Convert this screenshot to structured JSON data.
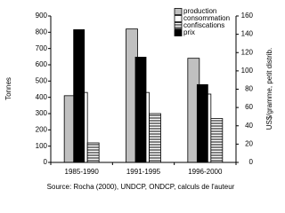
{
  "chart_data": {
    "type": "bar",
    "categories": [
      "1985-1990",
      "1991-1995",
      "1996-2000"
    ],
    "series": [
      {
        "name": "production",
        "color": "#c0c0c0",
        "values": [
          410,
          820,
          640
        ]
      },
      {
        "name": "consommation",
        "color": "#ffffff",
        "values": [
          430,
          430,
          420
        ]
      },
      {
        "name": "confiscations",
        "color": "#000000",
        "pattern": "horizontal-lines",
        "values": [
          120,
          300,
          270
        ]
      },
      {
        "name": "prix",
        "color": "#000000",
        "axis": "y2",
        "values": [
          145,
          115,
          85
        ]
      }
    ],
    "ylabel": "Tonnes",
    "y2label": "US$/gramme, petit distrib.",
    "ylim": [
      0,
      900
    ],
    "yticks": [
      0,
      100,
      200,
      300,
      400,
      500,
      600,
      700,
      800,
      900
    ],
    "y2lim": [
      0,
      160
    ],
    "y2ticks": [
      0,
      20,
      40,
      60,
      80,
      100,
      120,
      140,
      160
    ],
    "legend": "top-right",
    "source": "Source: Rocha (2000), UNDCP, ONDCP, calculs de l'auteur"
  }
}
